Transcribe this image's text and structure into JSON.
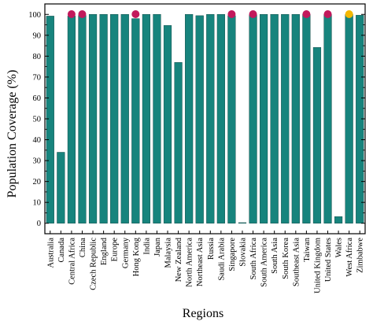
{
  "chart_data": {
    "type": "bar",
    "xlabel": "Regions",
    "ylabel": "Population Coverage (%)",
    "ylim": [
      -5,
      105
    ],
    "yticks": [
      0,
      10,
      20,
      30,
      40,
      50,
      60,
      70,
      80,
      90,
      100
    ],
    "grid": false,
    "bar_color": "#17847d",
    "categories": [
      "Australia",
      "Canada",
      "Central Africa",
      "China",
      "Czech Republic",
      "England",
      "Europe",
      "Germany",
      "Hong Kong",
      "India",
      "Japan",
      "Malaysia",
      "New Zealand",
      "North America",
      "Northeast Asia",
      "Russia",
      "Saudi Arabia",
      "Singapore",
      "Slovakia",
      "South Africa",
      "South America",
      "South Asia",
      "South Korea",
      "Southeast Asia",
      "Taiwan",
      "United Kingdom",
      "United States",
      "Wales",
      "West Africa",
      "Zimbabwe"
    ],
    "values": [
      99.2,
      34,
      99.2,
      99.5,
      100,
      100,
      100,
      100,
      98,
      100,
      100,
      94.7,
      77,
      100,
      99.4,
      100,
      100,
      99.4,
      0.3,
      99.8,
      100,
      100,
      100,
      100,
      100,
      84.2,
      100,
      3.2,
      100,
      99.6
    ],
    "markers": [
      {
        "category": "Central Africa",
        "color": "#c2185b"
      },
      {
        "category": "China",
        "color": "#c2185b"
      },
      {
        "category": "Hong Kong",
        "color": "#c2185b"
      },
      {
        "category": "Singapore",
        "color": "#c2185b"
      },
      {
        "category": "South Africa",
        "color": "#c2185b"
      },
      {
        "category": "Taiwan",
        "color": "#c2185b"
      },
      {
        "category": "United States",
        "color": "#c2185b"
      },
      {
        "category": "West Africa",
        "color": "#f5b800"
      }
    ]
  }
}
